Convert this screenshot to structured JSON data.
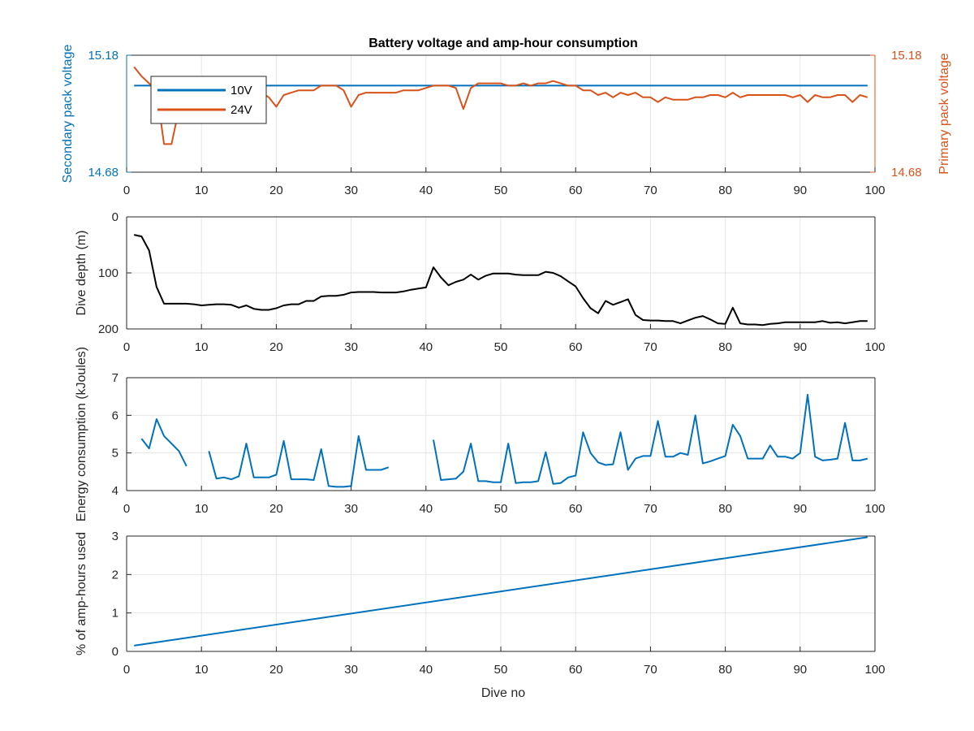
{
  "colors": {
    "blue": "#0072bd",
    "orange": "#d95319",
    "black": "#000000",
    "grid": "#e6e6e6",
    "axis": "#262626"
  },
  "figure": {
    "title": "Battery voltage and amp-hour consumption",
    "xlabel": "Dive no"
  },
  "chart_data": [
    {
      "type": "line",
      "title": "Battery voltage and amp-hour consumption",
      "xlabel": "",
      "ylabel": "Secondary pack voltage",
      "ylabel_right": "Primary pack voltage",
      "xlim": [
        0,
        100
      ],
      "xticks": [
        0,
        10,
        20,
        30,
        40,
        50,
        60,
        70,
        80,
        90,
        100
      ],
      "ylim": [
        14.68,
        15.18
      ],
      "yticks": [
        14.68,
        15.18
      ],
      "ylim_right": [
        14.68,
        15.18
      ],
      "yticks_right": [
        14.68,
        15.18
      ],
      "grid": true,
      "legend": "top-left",
      "series": [
        {
          "name": "10V",
          "axis": "left",
          "color": "#0072bd",
          "x": [
            1,
            99
          ],
          "y": [
            15.05,
            15.05
          ]
        },
        {
          "name": "24V",
          "axis": "right",
          "color": "#d95319",
          "x": [
            1,
            2,
            3,
            4,
            5,
            6,
            7,
            8,
            9,
            10,
            11,
            12,
            13,
            14,
            15,
            16,
            17,
            18,
            19,
            20,
            21,
            22,
            23,
            24,
            25,
            26,
            27,
            28,
            29,
            30,
            31,
            32,
            33,
            34,
            35,
            36,
            37,
            38,
            39,
            40,
            41,
            42,
            43,
            44,
            45,
            46,
            47,
            48,
            49,
            50,
            51,
            52,
            53,
            54,
            55,
            56,
            57,
            58,
            59,
            60,
            61,
            62,
            63,
            64,
            65,
            66,
            67,
            68,
            69,
            70,
            71,
            72,
            73,
            74,
            75,
            76,
            77,
            78,
            79,
            80,
            81,
            82,
            83,
            84,
            85,
            86,
            87,
            88,
            89,
            90,
            91,
            92,
            93,
            94,
            95,
            96,
            97,
            98,
            99
          ],
          "y": [
            15.13,
            15.09,
            15.06,
            15.03,
            14.8,
            14.8,
            14.95,
            15.0,
            15.02,
            15.02,
            15.03,
            15.03,
            15.03,
            15.03,
            15.03,
            15.03,
            15.02,
            15.02,
            15.0,
            14.96,
            15.01,
            15.02,
            15.03,
            15.03,
            15.03,
            15.05,
            15.05,
            15.05,
            15.03,
            14.96,
            15.01,
            15.02,
            15.02,
            15.02,
            15.02,
            15.02,
            15.03,
            15.03,
            15.03,
            15.04,
            15.05,
            15.05,
            15.05,
            15.04,
            14.95,
            15.04,
            15.06,
            15.06,
            15.06,
            15.06,
            15.05,
            15.05,
            15.06,
            15.05,
            15.06,
            15.06,
            15.07,
            15.06,
            15.05,
            15.05,
            15.03,
            15.03,
            15.01,
            15.02,
            15.0,
            15.02,
            15.01,
            15.02,
            15.0,
            15.0,
            14.98,
            15.0,
            14.99,
            14.99,
            14.99,
            15.0,
            15.0,
            15.01,
            15.01,
            15.0,
            15.02,
            15.0,
            15.01,
            15.01,
            15.01,
            15.01,
            15.01,
            15.01,
            15.0,
            15.01,
            14.98,
            15.01,
            15.0,
            15.0,
            15.01,
            15.01,
            14.98,
            15.01,
            15.0
          ]
        }
      ]
    },
    {
      "type": "line",
      "xlabel": "",
      "ylabel": "Dive depth (m)",
      "xlim": [
        0,
        100
      ],
      "xticks": [
        0,
        10,
        20,
        30,
        40,
        50,
        60,
        70,
        80,
        90,
        100
      ],
      "ylim": [
        0,
        200
      ],
      "yreverse": true,
      "yticks": [
        0,
        100,
        200
      ],
      "grid": true,
      "series": [
        {
          "color": "#000000",
          "x": [
            1,
            2,
            3,
            4,
            5,
            6,
            7,
            8,
            9,
            10,
            11,
            12,
            13,
            14,
            15,
            16,
            17,
            18,
            19,
            20,
            21,
            22,
            23,
            24,
            25,
            26,
            27,
            28,
            29,
            30,
            31,
            32,
            33,
            34,
            35,
            36,
            37,
            38,
            39,
            40,
            41,
            42,
            43,
            44,
            45,
            46,
            47,
            48,
            49,
            50,
            51,
            52,
            53,
            54,
            55,
            56,
            57,
            58,
            59,
            60,
            61,
            62,
            63,
            64,
            65,
            66,
            67,
            68,
            69,
            70,
            71,
            72,
            73,
            74,
            75,
            76,
            77,
            78,
            79,
            80,
            81,
            82,
            83,
            84,
            85,
            86,
            87,
            88,
            89,
            90,
            91,
            92,
            93,
            94,
            95,
            96,
            97,
            98,
            99
          ],
          "y": [
            32,
            35,
            60,
            125,
            155,
            155,
            155,
            155,
            156,
            158,
            157,
            156,
            156,
            157,
            162,
            158,
            164,
            166,
            166,
            163,
            158,
            156,
            156,
            150,
            150,
            142,
            141,
            141,
            139,
            135,
            134,
            134,
            134,
            135,
            135,
            135,
            133,
            130,
            128,
            126,
            90,
            108,
            122,
            116,
            112,
            103,
            112,
            105,
            101,
            101,
            101,
            103,
            104,
            104,
            104,
            98,
            100,
            106,
            115,
            124,
            145,
            163,
            172,
            150,
            157,
            152,
            147,
            175,
            184,
            185,
            185,
            186,
            186,
            190,
            185,
            180,
            177,
            183,
            190,
            191,
            162,
            190,
            192,
            192,
            193,
            191,
            190,
            188,
            188,
            188,
            188,
            188,
            186,
            189,
            188,
            190,
            188,
            186,
            186
          ]
        }
      ]
    },
    {
      "type": "line",
      "xlabel": "",
      "ylabel": "Energy consumption (kJoules)",
      "xlim": [
        0,
        100
      ],
      "xticks": [
        0,
        10,
        20,
        30,
        40,
        50,
        60,
        70,
        80,
        90,
        100
      ],
      "ylim": [
        4,
        7
      ],
      "yticks": [
        4,
        5,
        6,
        7
      ],
      "grid": true,
      "series": [
        {
          "color": "#0072bd",
          "x": [
            2,
            3,
            4,
            5,
            6,
            7,
            8,
            9,
            10,
            11,
            12,
            13,
            14,
            15,
            16,
            17,
            18,
            19,
            20,
            21,
            22,
            23,
            24,
            25,
            26,
            27,
            28,
            29,
            30,
            31,
            32,
            33,
            34,
            35,
            36,
            37,
            38,
            39,
            40,
            41,
            42,
            43,
            44,
            45,
            46,
            47,
            48,
            49,
            50,
            51,
            52,
            53,
            54,
            55,
            56,
            57,
            58,
            59,
            60,
            61,
            62,
            63,
            64,
            65,
            66,
            67,
            68,
            69,
            70,
            71,
            72,
            73,
            74,
            75,
            76,
            77,
            78,
            79,
            80,
            81,
            82,
            83,
            84,
            85,
            86,
            87,
            88,
            89,
            90,
            91,
            92,
            93,
            94,
            95,
            96,
            97,
            98,
            99
          ],
          "y": [
            5.38,
            5.12,
            5.9,
            5.45,
            5.25,
            5.05,
            4.65,
            null,
            null,
            5.05,
            4.32,
            4.35,
            4.3,
            4.38,
            5.25,
            4.35,
            4.35,
            4.35,
            4.42,
            5.32,
            4.3,
            4.3,
            4.3,
            4.28,
            5.1,
            4.12,
            4.1,
            4.1,
            4.12,
            5.45,
            4.55,
            4.55,
            4.55,
            4.62,
            null,
            null,
            null,
            null,
            null,
            5.35,
            4.28,
            4.3,
            4.32,
            4.5,
            5.25,
            4.25,
            4.25,
            4.22,
            4.22,
            5.25,
            4.2,
            4.22,
            4.22,
            4.25,
            5.02,
            4.18,
            4.2,
            4.35,
            4.4,
            5.55,
            5.0,
            4.75,
            4.68,
            4.7,
            5.55,
            4.55,
            4.85,
            4.92,
            4.92,
            5.85,
            4.9,
            4.9,
            5.0,
            4.95,
            6.0,
            4.72,
            4.78,
            4.85,
            4.92,
            5.75,
            5.45,
            4.85,
            4.85,
            4.85,
            5.2,
            4.9,
            4.9,
            4.85,
            5.0,
            6.55,
            4.9,
            4.8,
            4.82,
            4.85,
            5.8,
            4.8,
            4.8,
            4.85
          ]
        }
      ]
    },
    {
      "type": "line",
      "xlabel": "Dive no",
      "ylabel": "% of amp-hours used",
      "xlim": [
        0,
        100
      ],
      "xticks": [
        0,
        10,
        20,
        30,
        40,
        50,
        60,
        70,
        80,
        90,
        100
      ],
      "ylim": [
        0,
        3
      ],
      "yticks": [
        0,
        1,
        2,
        3
      ],
      "grid": true,
      "series": [
        {
          "color": "#0072bd",
          "x": [
            1,
            99
          ],
          "y": [
            0.15,
            2.97
          ]
        }
      ]
    }
  ]
}
